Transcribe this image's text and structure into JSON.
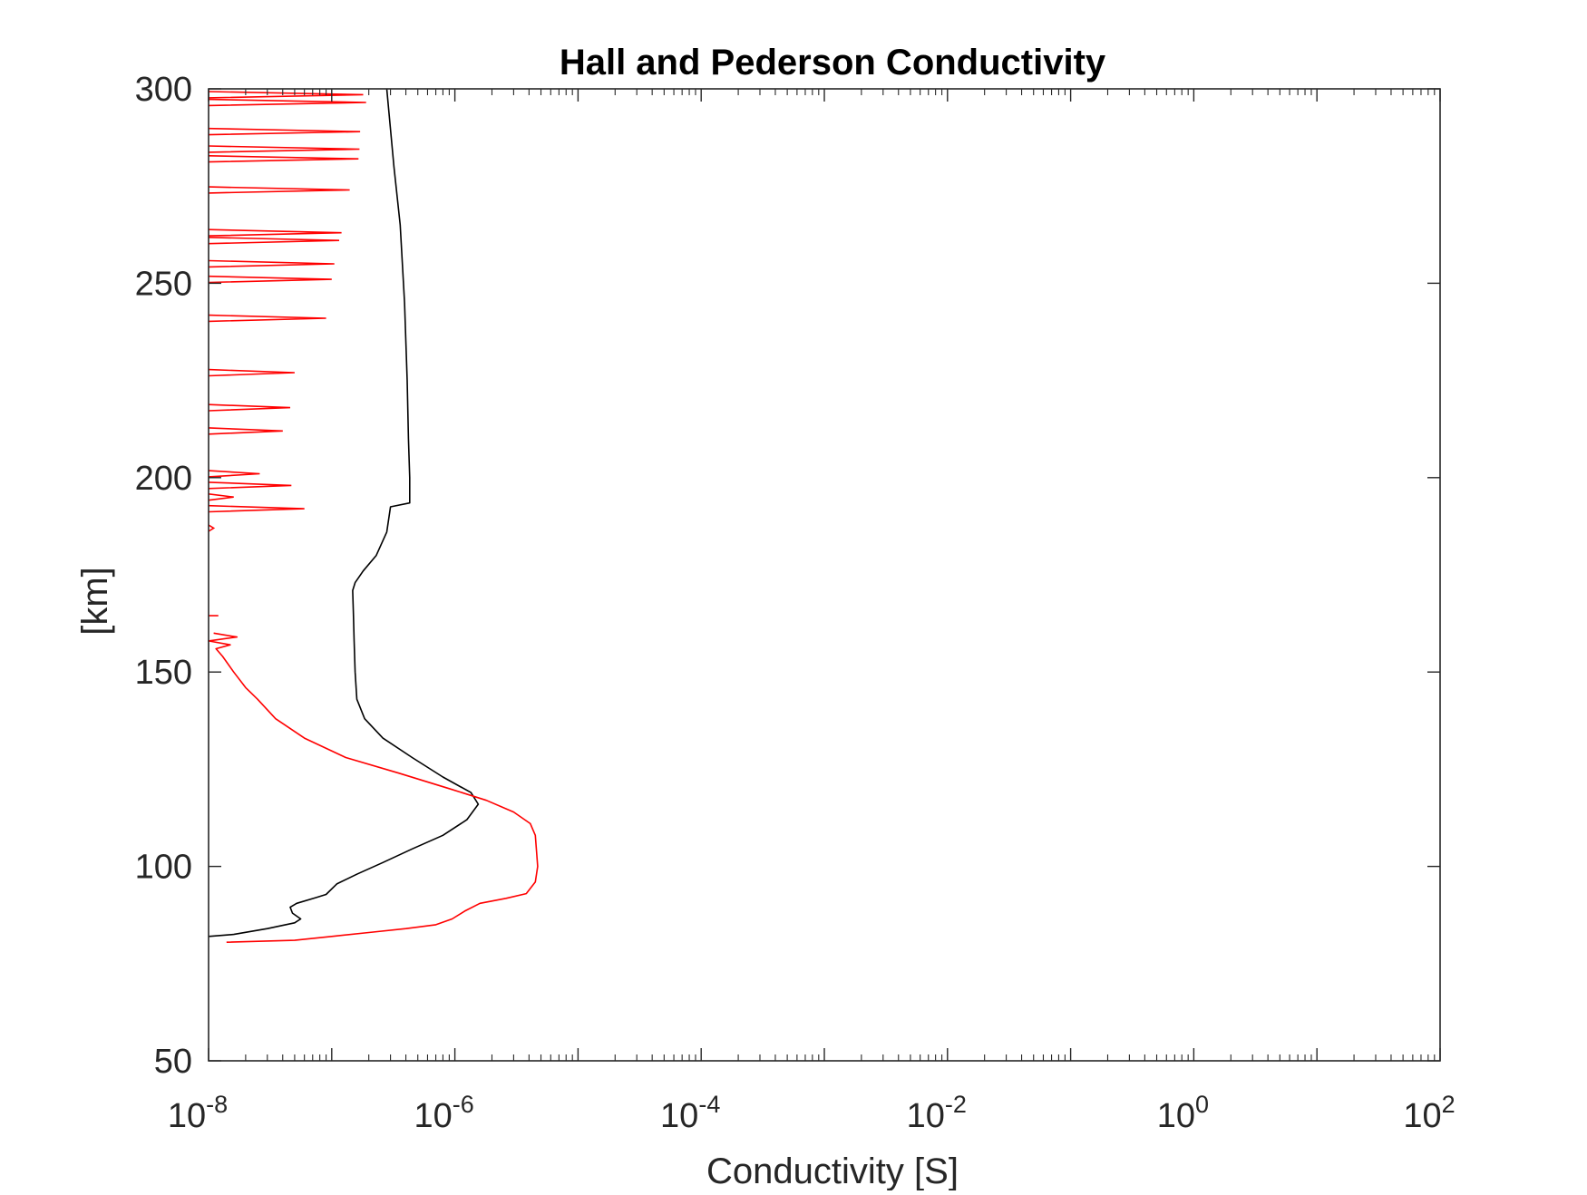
{
  "chart_data": {
    "type": "line",
    "title": "Hall and Pederson Conductivity",
    "xlabel": "Conductivity [S]",
    "ylabel": "[km]",
    "xscale": "log",
    "xlim": [
      1e-08,
      100
    ],
    "ylim": [
      50,
      300
    ],
    "x_ticks": [
      {
        "base": "10",
        "exp": "-8"
      },
      {
        "base": "10",
        "exp": "-6"
      },
      {
        "base": "10",
        "exp": "-4"
      },
      {
        "base": "10",
        "exp": "-2"
      },
      {
        "base": "10",
        "exp": "0"
      },
      {
        "base": "10",
        "exp": "2"
      }
    ],
    "y_ticks": [
      "50",
      "100",
      "150",
      "200",
      "250",
      "300"
    ],
    "grid": false,
    "colors": {
      "series_black": "#000000",
      "series_red": "#ff0000",
      "axes": "#262626"
    },
    "series": [
      {
        "color": "#000000",
        "points": [
          [
            1e-08,
            82
          ],
          [
            1.6e-08,
            82.5
          ],
          [
            3e-08,
            84
          ],
          [
            5e-08,
            85.5
          ],
          [
            5.6e-08,
            86.5
          ],
          [
            4.8e-08,
            88
          ],
          [
            4.6e-08,
            89.5
          ],
          [
            5.2e-08,
            90.5
          ],
          [
            7.5e-08,
            92
          ],
          [
            9e-08,
            92.8
          ],
          [
            1.1e-07,
            95.5
          ],
          [
            1.6e-07,
            98
          ],
          [
            2.6e-07,
            101
          ],
          [
            4.5e-07,
            104.5
          ],
          [
            8e-07,
            108
          ],
          [
            1.25e-06,
            112
          ],
          [
            1.55e-06,
            116
          ],
          [
            1.35e-06,
            119
          ],
          [
            8e-07,
            123
          ],
          [
            4.5e-07,
            128
          ],
          [
            2.6e-07,
            133
          ],
          [
            1.85e-07,
            138
          ],
          [
            1.6e-07,
            143
          ],
          [
            1.55e-07,
            150
          ],
          [
            1.52e-07,
            158
          ],
          [
            1.5e-07,
            165
          ],
          [
            1.48e-07,
            171
          ],
          [
            1.55e-07,
            173
          ],
          [
            1.8e-07,
            176
          ],
          [
            2.3e-07,
            180
          ],
          [
            2.8e-07,
            186
          ],
          [
            3e-07,
            192.5
          ],
          [
            4.3e-07,
            193.5
          ],
          [
            4.3e-07,
            200
          ],
          [
            4.2e-07,
            210
          ],
          [
            4.1e-07,
            225
          ],
          [
            3.9e-07,
            245
          ],
          [
            3.6e-07,
            265
          ],
          [
            3.2e-07,
            280
          ],
          [
            2.8e-07,
            300
          ]
        ]
      },
      {
        "color": "#ff0000",
        "points": [
          [
            1.4e-08,
            80.5
          ],
          [
            5e-08,
            81
          ],
          [
            1e-07,
            82
          ],
          [
            2e-07,
            83
          ],
          [
            4e-07,
            84
          ],
          [
            7e-07,
            85
          ],
          [
            9.5e-07,
            86.5
          ],
          [
            1.2e-06,
            88.5
          ],
          [
            1.6e-06,
            90.5
          ],
          [
            2.6e-06,
            91.8
          ],
          [
            3.8e-06,
            93
          ],
          [
            4.5e-06,
            96
          ],
          [
            4.7e-06,
            100
          ],
          [
            4.6e-06,
            104
          ],
          [
            4.5e-06,
            108
          ],
          [
            4.1e-06,
            111
          ],
          [
            3e-06,
            114
          ],
          [
            1.8e-06,
            117
          ],
          [
            9e-07,
            120
          ],
          [
            3.5e-07,
            124
          ],
          [
            1.3e-07,
            128
          ],
          [
            6e-08,
            133
          ],
          [
            3.5e-08,
            138
          ],
          [
            2.5e-08,
            143
          ],
          [
            2e-08,
            146
          ],
          [
            1.6e-08,
            150
          ],
          [
            1.3e-08,
            154
          ],
          [
            1.15e-08,
            156
          ],
          [
            1.5e-08,
            157
          ],
          [
            1e-08,
            158
          ],
          [
            1.7e-08,
            159
          ],
          [
            1.1e-08,
            160
          ]
        ]
      }
    ]
  }
}
